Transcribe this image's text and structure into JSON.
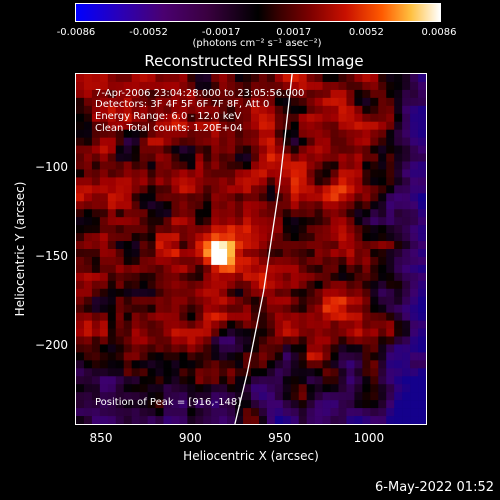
{
  "colorbar": {
    "ticks": [
      "-0.0086",
      "-0.0052",
      "-0.0017",
      "0.0017",
      "0.0052",
      "0.0086"
    ],
    "units": "(photons cm⁻² s⁻¹ asec⁻²)"
  },
  "annotations": {
    "time": "7-Apr-2006 23:04:28.000 to 23:05:56.000",
    "detectors": "Detectors: 3F 4F 5F 6F 7F 8F, Att 0",
    "energy": "Energy Range: 6.0 - 12.0 keV",
    "clean": "Clean    Total counts: 1.20E+04",
    "peak": "Position of Peak = [916,-148]"
  },
  "datestamp": "6-May-2022 01:52",
  "chart_data": {
    "type": "heatmap",
    "title": "Reconstructed RHESSI Image",
    "xlabel": "Heliocentric X (arcsec)",
    "ylabel": "Heliocentric Y (arcsec)",
    "xlim": [
      836,
      1032
    ],
    "ylim": [
      -244,
      -48
    ],
    "x_ticks": [
      "850",
      "900",
      "950",
      "1000"
    ],
    "y_ticks": [
      "-100",
      "-150",
      "-200"
    ],
    "x_tick_values": [
      850,
      900,
      950,
      1000
    ],
    "y_tick_values": [
      -100,
      -150,
      -200
    ],
    "zlim": [
      -0.0086,
      0.0086
    ],
    "colormap": "blue-black-red-yellow-white",
    "peak_position": [
      916,
      -148
    ],
    "limb_curve": [
      [
        957,
        -48
      ],
      [
        950,
        -110
      ],
      [
        941,
        -170
      ],
      [
        932,
        -215
      ],
      [
        925,
        -244
      ]
    ]
  }
}
